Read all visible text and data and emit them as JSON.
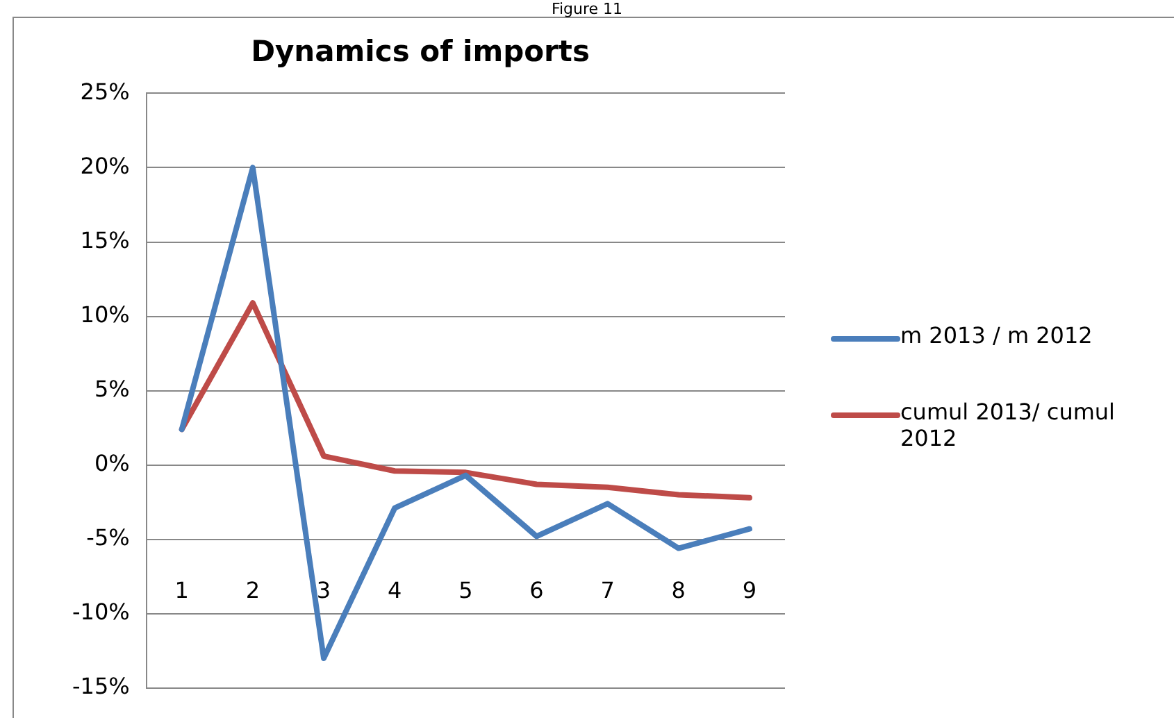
{
  "chart_data": {
    "type": "line",
    "title": "Dynamics of imports",
    "annotations": [
      "Figure 11"
    ],
    "categories": [
      "1",
      "2",
      "3",
      "4",
      "5",
      "6",
      "7",
      "8",
      "9"
    ],
    "series": [
      {
        "name": "m 2013 / m 2012",
        "color": "#4a7ebb",
        "values": [
          2.4,
          20,
          -13,
          -2.9,
          -0.7,
          -4.8,
          -2.6,
          -5.6,
          -4.3
        ]
      },
      {
        "name": "cumul 2013/ cumul 2012",
        "color": "#be4b48",
        "values": [
          2.4,
          10.9,
          0.6,
          -0.4,
          -0.5,
          -1.3,
          -1.5,
          -2.0,
          -2.2
        ]
      }
    ],
    "ylim": [
      -15,
      25
    ],
    "yticks": [
      {
        "value": -15,
        "label": "-15%"
      },
      {
        "value": -10,
        "label": "-10%"
      },
      {
        "value": -5,
        "label": "-5%"
      },
      {
        "value": 0,
        "label": "0%"
      },
      {
        "value": 5,
        "label": "5%"
      },
      {
        "value": 10,
        "label": "10%"
      },
      {
        "value": 15,
        "label": "15%"
      },
      {
        "value": 20,
        "label": "20%"
      },
      {
        "value": 25,
        "label": "25%"
      }
    ],
    "grid": "y",
    "legend": "right",
    "marker": "none",
    "line_style": "solid"
  }
}
